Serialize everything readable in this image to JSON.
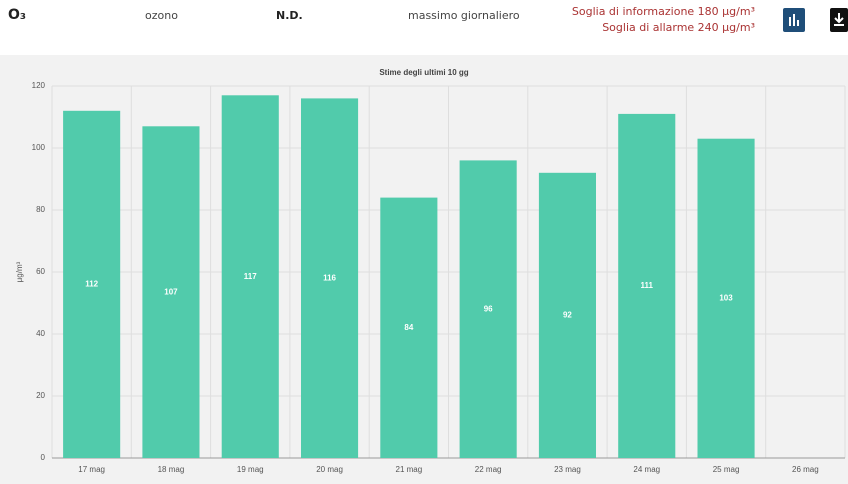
{
  "header": {
    "pollutant": "O₃",
    "name": "ozono",
    "status": "N.D.",
    "measure": "massimo giornaliero",
    "thresholds": [
      "Soglia di informazione 180 μg/m³",
      "Soglia di allarme 240 μg/m³"
    ]
  },
  "chart_data": {
    "type": "bar",
    "title": "Stime degli ultimi 10 gg",
    "y_label": "μg/m³",
    "categories": [
      "17 mag",
      "18 mag",
      "19 mag",
      "20 mag",
      "21 mag",
      "22 mag",
      "23 mag",
      "24 mag",
      "25 mag",
      "26 mag"
    ],
    "values": [
      112,
      107,
      117,
      116,
      84,
      96,
      92,
      111,
      103,
      null
    ],
    "color": "#51cbab",
    "ylim": [
      0,
      120
    ],
    "yticks": [
      0,
      20,
      40,
      60,
      80,
      100,
      120
    ],
    "grid": true
  }
}
